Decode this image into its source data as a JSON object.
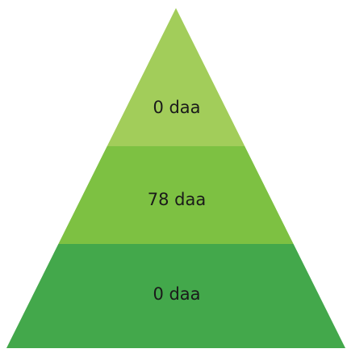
{
  "chart_data": {
    "type": "pyramid",
    "unit": "daa",
    "tiers": [
      {
        "label": "0 daa",
        "value": 0,
        "color": "#a2cd5a"
      },
      {
        "label": "78 daa",
        "value": 78,
        "color": "#7dc142"
      },
      {
        "label": "0 daa",
        "value": 0,
        "color": "#43a84b"
      }
    ]
  }
}
